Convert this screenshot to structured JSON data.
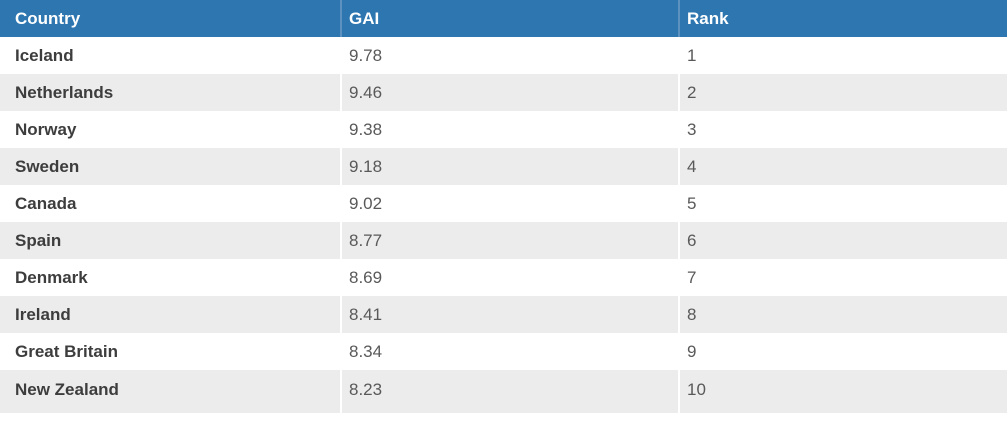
{
  "chart_data": {
    "type": "table",
    "title": "",
    "columns": [
      "Country",
      "GAI",
      "Rank"
    ],
    "rows": [
      [
        "Iceland",
        "9.78",
        "1"
      ],
      [
        "Netherlands",
        "9.46",
        "2"
      ],
      [
        "Norway",
        "9.38",
        "3"
      ],
      [
        "Sweden",
        "9.18",
        "4"
      ],
      [
        "Canada",
        "9.02",
        "5"
      ],
      [
        "Spain",
        "8.77",
        "6"
      ],
      [
        "Denmark",
        "8.69",
        "7"
      ],
      [
        "Ireland",
        "8.41",
        "8"
      ],
      [
        "Great Britain",
        "8.34",
        "9"
      ],
      [
        "New Zealand",
        "8.23",
        "10"
      ]
    ],
    "layout": {
      "header_position": "top",
      "zebra_striping": true,
      "column_alignment": [
        "left",
        "left",
        "left"
      ]
    }
  },
  "colors": {
    "header_bg": "#2d76b0",
    "header_text": "#ffffff",
    "header_separator": "#5d92c0",
    "row_bg": "#ffffff",
    "alt_row_bg": "#ececec",
    "country_text": "#3d3d3d",
    "value_text": "#595959"
  }
}
